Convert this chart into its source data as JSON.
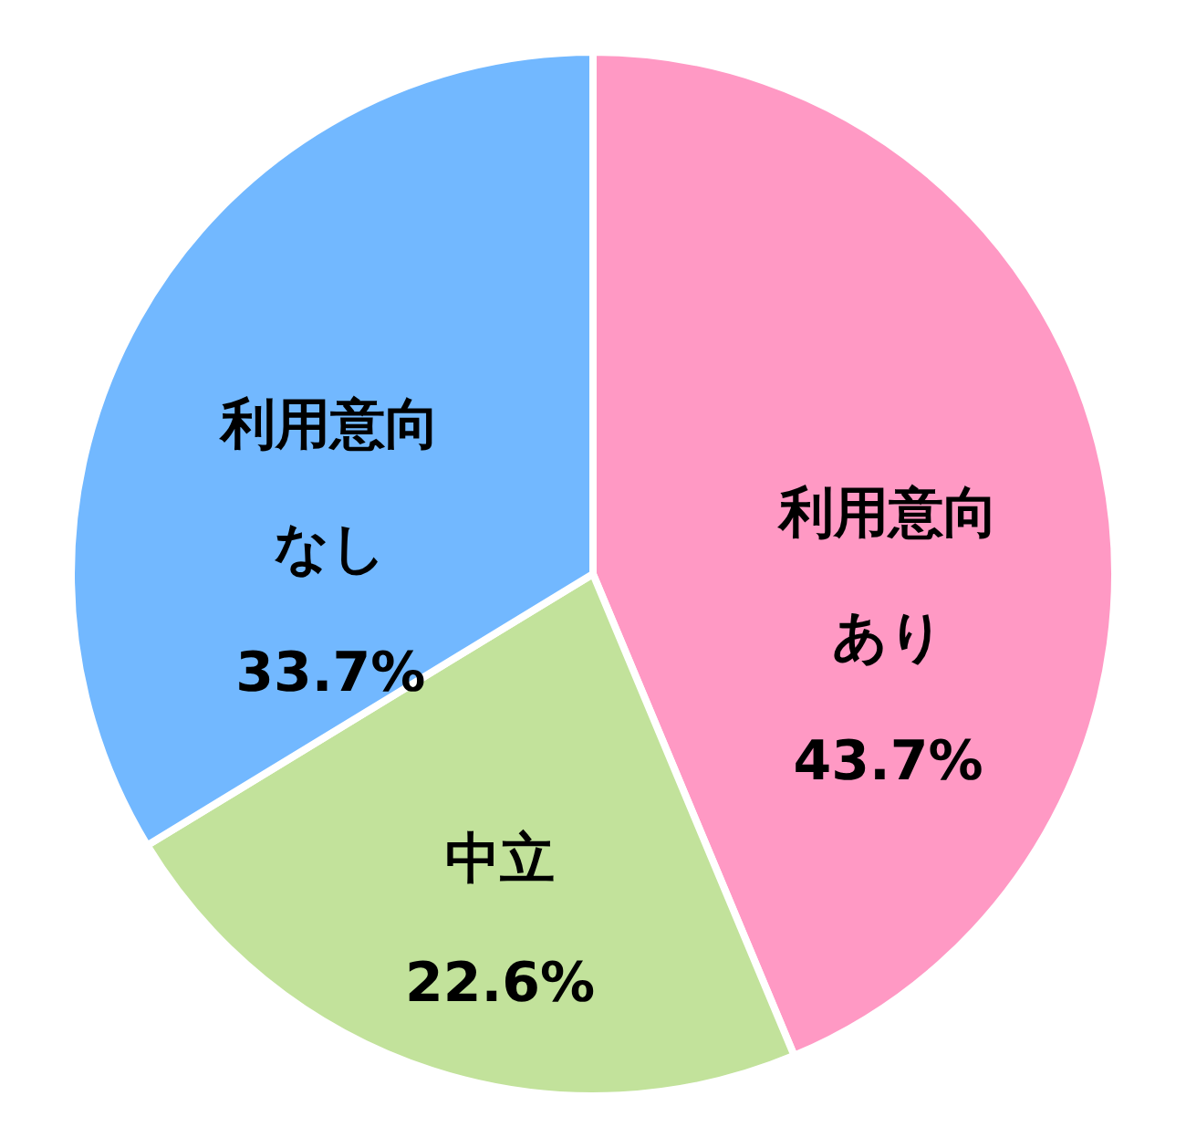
{
  "chart_data": {
    "type": "pie",
    "categories": [
      "利用意向あり",
      "中立",
      "利用意向なし"
    ],
    "values": [
      43.7,
      22.6,
      33.7
    ],
    "colors": [
      "#ff99c4",
      "#c2e29b",
      "#72b8ff"
    ],
    "value_labels": [
      "43.7%",
      "22.6%",
      "33.7%"
    ],
    "legend": false
  }
}
